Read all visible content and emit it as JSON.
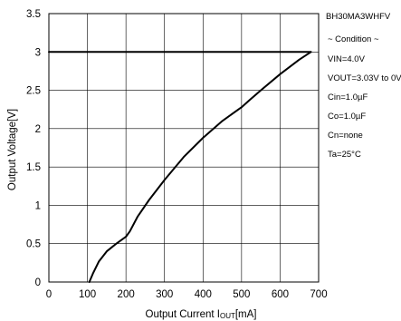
{
  "chart_data": {
    "type": "line",
    "title": "",
    "xlabel_main": "Output Current I",
    "xlabel_sub": "OUT",
    "xlabel_unit": "[mA]",
    "ylabel": "Output Voltage[V]",
    "xlim": [
      0,
      700
    ],
    "ylim": [
      0,
      3.5
    ],
    "xticks": [
      "0",
      "100",
      "200",
      "300",
      "400",
      "500",
      "600",
      "700"
    ],
    "yticks": [
      "0",
      "0.5",
      "1",
      "1.5",
      "2",
      "2.5",
      "3",
      "3.5"
    ],
    "grid": true,
    "series": [
      {
        "x": [
          105,
          115,
          130,
          150,
          175,
          200,
          210,
          230,
          260,
          300,
          350,
          400,
          450,
          500,
          520,
          550,
          600,
          650,
          680
        ],
        "y": [
          0,
          0.12,
          0.27,
          0.4,
          0.5,
          0.59,
          0.66,
          0.85,
          1.07,
          1.33,
          1.63,
          1.88,
          2.1,
          2.28,
          2.37,
          2.5,
          2.71,
          2.9,
          3.0
        ]
      },
      {
        "x": [
          0,
          680
        ],
        "y": [
          3.0,
          3.0
        ]
      }
    ],
    "annotations": {
      "part": "BH30MA3WHFV",
      "condition": "~ Condition ~",
      "lines": [
        "VIN=4.0V",
        "VOUT=3.03V to 0V",
        "Cin=1.0µF",
        "Co=1.0µF",
        "Cn=none",
        "Ta=25°C"
      ]
    }
  }
}
